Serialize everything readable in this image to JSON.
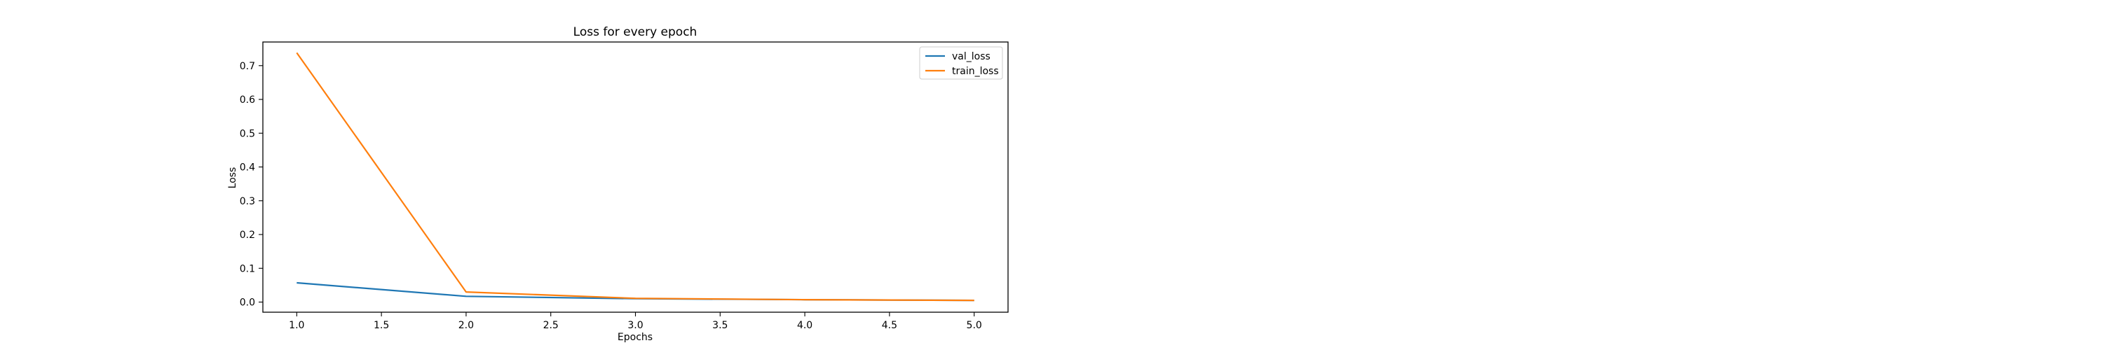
{
  "chart_data": {
    "type": "line",
    "title": "Loss for every epoch",
    "xlabel": "Epochs",
    "ylabel": "Loss",
    "x": [
      1.0,
      2.0,
      3.0,
      4.0,
      5.0
    ],
    "xlim": [
      0.8,
      5.2
    ],
    "ylim": [
      -0.03,
      0.77
    ],
    "xticks": [
      1.0,
      1.5,
      2.0,
      2.5,
      3.0,
      3.5,
      4.0,
      4.5,
      5.0
    ],
    "xtick_labels": [
      "1.0",
      "1.5",
      "2.0",
      "2.5",
      "3.0",
      "3.5",
      "4.0",
      "4.5",
      "5.0"
    ],
    "yticks": [
      0.0,
      0.1,
      0.2,
      0.3,
      0.4,
      0.5,
      0.6,
      0.7
    ],
    "ytick_labels": [
      "0.0",
      "0.1",
      "0.2",
      "0.3",
      "0.4",
      "0.5",
      "0.6",
      "0.7"
    ],
    "grid": false,
    "legend_position": "top-right",
    "series": [
      {
        "name": "val_loss",
        "color": "#1f77b4",
        "values": [
          0.057,
          0.017,
          0.01,
          0.007,
          0.005
        ]
      },
      {
        "name": "train_loss",
        "color": "#ff7f0e",
        "values": [
          0.738,
          0.03,
          0.011,
          0.007,
          0.005
        ]
      }
    ]
  }
}
